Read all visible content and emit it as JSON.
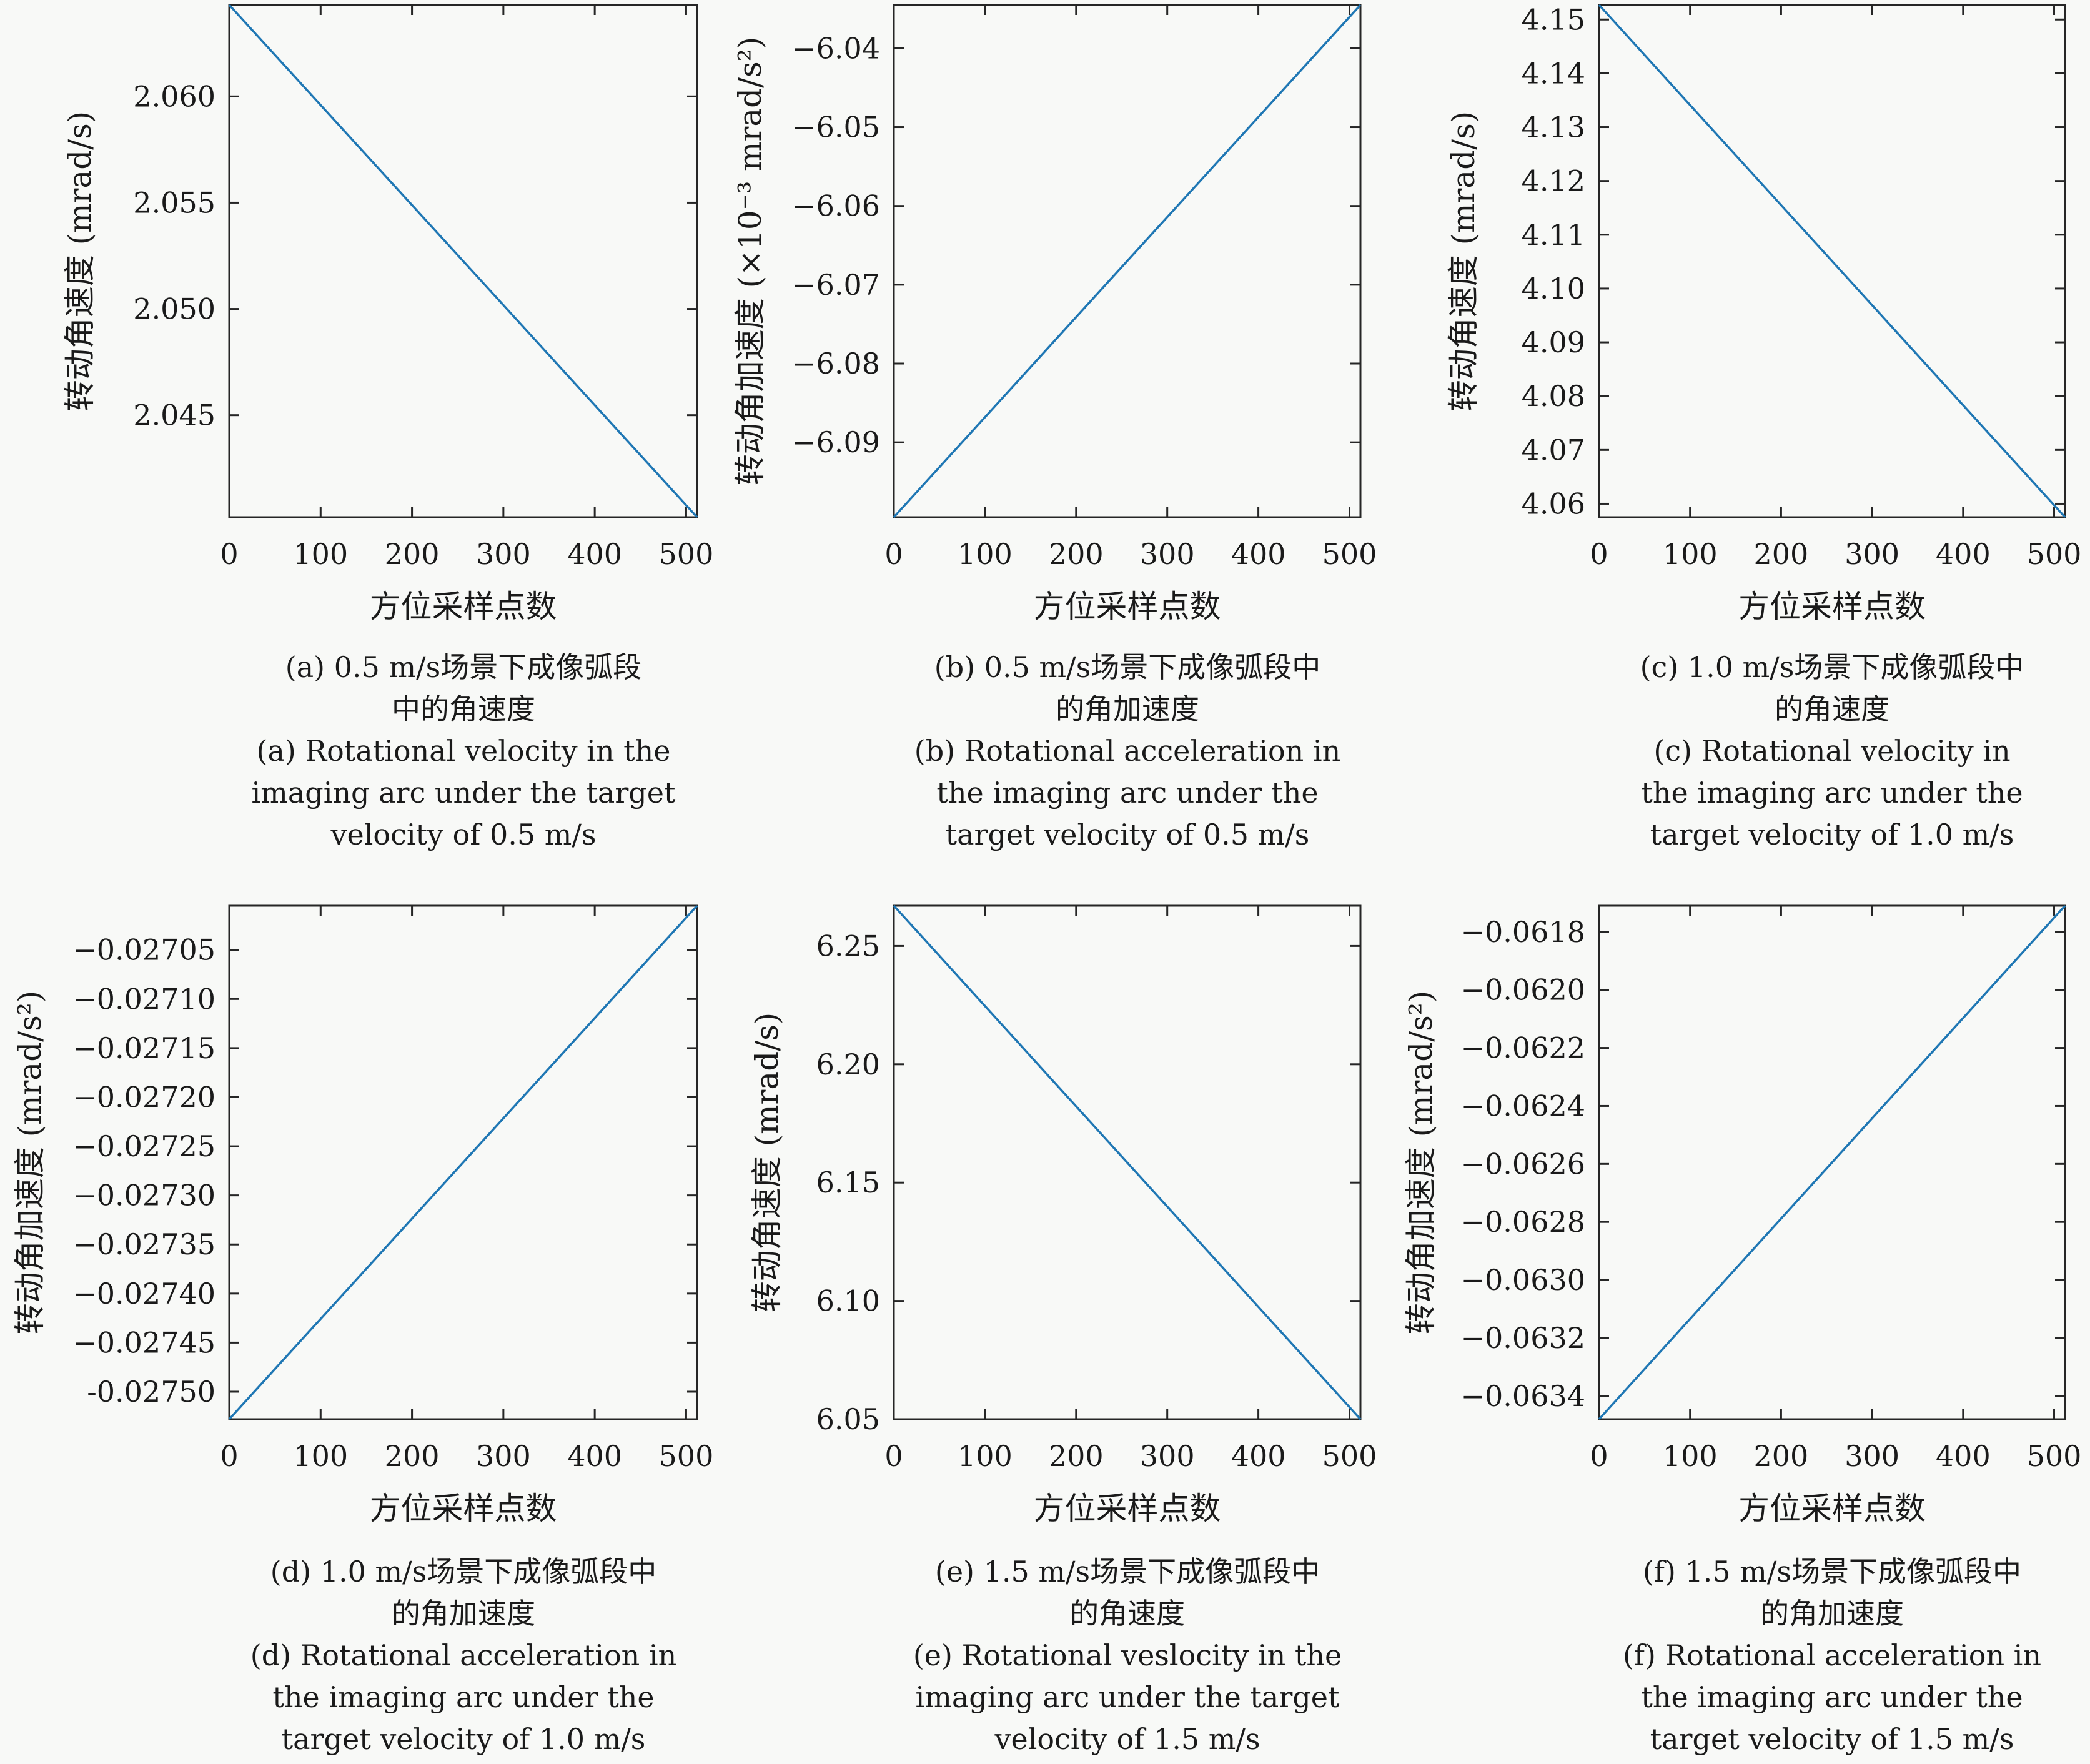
{
  "line_color": "#1f77b4",
  "chart_data": [
    {
      "type": "line",
      "xlabel": "方位采样点数",
      "ylabel": "转动角速度 (mrad/s)",
      "xlim": [
        0,
        512
      ],
      "ylim": [
        2.0402,
        2.0643
      ],
      "xticks": [
        0,
        100,
        200,
        300,
        400,
        500
      ],
      "xtick_labels": [
        "0",
        "100",
        "200",
        "300",
        "400",
        "500"
      ],
      "yticks": [
        2.045,
        2.05,
        2.055,
        2.06
      ],
      "ytick_labels": [
        "2.045",
        "2.050",
        "2.055",
        "2.060"
      ],
      "x": [
        0,
        512
      ],
      "y": [
        2.0643,
        2.0402
      ],
      "grid": false,
      "caption_cn": [
        "(a) 0.5 m/s场景下成像弧段",
        "中的角速度"
      ],
      "caption_en": [
        "(a) Rotational velocity in the",
        "imaging arc under the target",
        "velocity of 0.5 m/s"
      ]
    },
    {
      "type": "line",
      "xlabel": "方位采样点数",
      "ylabel": "转动角加速度 (×10⁻³ mrad/s²)",
      "xlim": [
        0,
        512
      ],
      "ylim": [
        -6.0995,
        -6.0345
      ],
      "xticks": [
        0,
        100,
        200,
        300,
        400,
        500
      ],
      "xtick_labels": [
        "0",
        "100",
        "200",
        "300",
        "400",
        "500"
      ],
      "yticks": [
        -6.09,
        -6.08,
        -6.07,
        -6.06,
        -6.05,
        -6.04
      ],
      "ytick_labels": [
        "−6.09",
        "−6.08",
        "−6.07",
        "−6.06",
        "−6.05",
        "−6.04"
      ],
      "x": [
        0,
        512
      ],
      "y": [
        -6.0995,
        -6.0345
      ],
      "grid": false,
      "caption_cn": [
        "(b) 0.5 m/s场景下成像弧段中",
        "的角加速度"
      ],
      "caption_en": [
        "(b) Rotational acceleration in",
        "the imaging arc under the",
        "target velocity of 0.5 m/s"
      ]
    },
    {
      "type": "line",
      "xlabel": "方位采样点数",
      "ylabel": "转动角速度 (mrad/s)",
      "xlim": [
        0,
        512
      ],
      "ylim": [
        4.0575,
        4.1527
      ],
      "xticks": [
        0,
        100,
        200,
        300,
        400,
        500
      ],
      "xtick_labels": [
        "0",
        "100",
        "200",
        "300",
        "400",
        "500"
      ],
      "yticks": [
        4.06,
        4.07,
        4.08,
        4.09,
        4.1,
        4.11,
        4.12,
        4.13,
        4.14,
        4.15
      ],
      "ytick_labels": [
        "4.06",
        "4.07",
        "4.08",
        "4.09",
        "4.10",
        "4.11",
        "4.12",
        "4.13",
        "4.14",
        "4.15"
      ],
      "x": [
        0,
        512
      ],
      "y": [
        4.1527,
        4.0575
      ],
      "grid": false,
      "caption_cn": [
        "(c) 1.0 m/s场景下成像弧段中",
        "的角速度"
      ],
      "caption_en": [
        "(c) Rotational velocity in",
        "the imaging arc under the",
        "target velocity of 1.0  m/s"
      ]
    },
    {
      "type": "line",
      "xlabel": "方位采样点数",
      "ylabel": "转动角加速度 (mrad/s²)",
      "xlim": [
        0,
        512
      ],
      "ylim": [
        -0.027528,
        -0.027005
      ],
      "xticks": [
        0,
        100,
        200,
        300,
        400,
        500
      ],
      "xtick_labels": [
        "0",
        "100",
        "200",
        "300",
        "400",
        "500"
      ],
      "yticks": [
        -0.0275,
        -0.02745,
        -0.0274,
        -0.02735,
        -0.0273,
        -0.02725,
        -0.0272,
        -0.02715,
        -0.0271,
        -0.02705
      ],
      "ytick_labels": [
        "-0.02750",
        "−0.02745",
        "−0.02740",
        "−0.02735",
        "−0.02730",
        "−0.02725",
        "−0.02720",
        "−0.02715",
        "−0.02710",
        "−0.02705"
      ],
      "x": [
        0,
        512
      ],
      "y": [
        -0.027528,
        -0.027005
      ],
      "grid": false,
      "caption_cn": [
        "(d) 1.0 m/s场景下成像弧段中",
        "的角加速度"
      ],
      "caption_en": [
        "(d) Rotational acceleration in",
        "the imaging arc under the",
        "target velocity of 1.0 m/s"
      ]
    },
    {
      "type": "line",
      "xlabel": "方位采样点数",
      "ylabel": "转动角速度 (mrad/s)",
      "xlim": [
        0,
        512
      ],
      "ylim": [
        6.05,
        6.267
      ],
      "xticks": [
        0,
        100,
        200,
        300,
        400,
        500
      ],
      "xtick_labels": [
        "0",
        "100",
        "200",
        "300",
        "400",
        "500"
      ],
      "yticks": [
        6.05,
        6.1,
        6.15,
        6.2,
        6.25
      ],
      "ytick_labels": [
        "6.05",
        "6.10",
        "6.15",
        "6.20",
        "6.25"
      ],
      "x": [
        0,
        512
      ],
      "y": [
        6.267,
        6.05
      ],
      "grid": false,
      "caption_cn": [
        "(e) 1.5 m/s场景下成像弧段中",
        "的角速度"
      ],
      "caption_en": [
        "(e) Rotational veslocity in the",
        "imaging arc under the target",
        "velocity of 1.5 m/s"
      ]
    },
    {
      "type": "line",
      "xlabel": "方位采样点数",
      "ylabel": "转动角加速度 (mrad/s²)",
      "xlim": [
        0,
        512
      ],
      "ylim": [
        -0.06348,
        -0.06171
      ],
      "xticks": [
        0,
        100,
        200,
        300,
        400,
        500
      ],
      "xtick_labels": [
        "0",
        "100",
        "200",
        "300",
        "400",
        "500"
      ],
      "yticks": [
        -0.0634,
        -0.0632,
        -0.063,
        -0.0628,
        -0.0626,
        -0.0624,
        -0.0622,
        -0.062,
        -0.0618
      ],
      "ytick_labels": [
        "−0.0634",
        "−0.0632",
        "−0.0630",
        "−0.0628",
        "−0.0626",
        "−0.0624",
        "−0.0622",
        "−0.0620",
        "−0.0618"
      ],
      "x": [
        0,
        512
      ],
      "y": [
        -0.06348,
        -0.06171
      ],
      "grid": false,
      "caption_cn": [
        "(f) 1.5 m/s场景下成像弧段中",
        "的角加速度"
      ],
      "caption_en": [
        "(f) Rotational acceleration in",
        "the imaging arc under the",
        "target velocity of 1.5 m/s"
      ]
    }
  ]
}
